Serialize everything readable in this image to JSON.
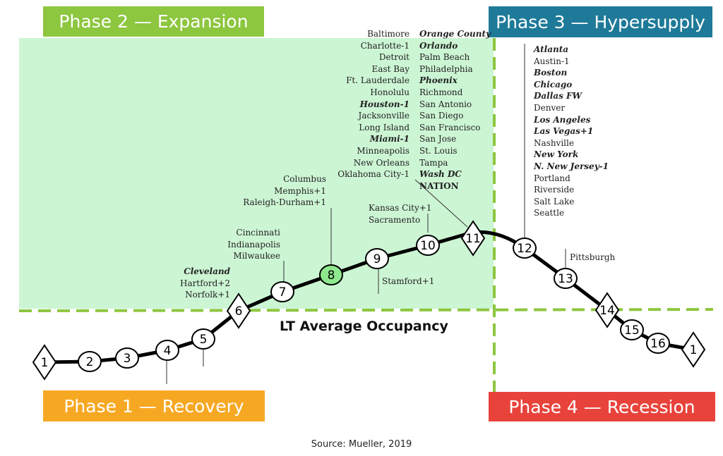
{
  "phases": {
    "expansion": {
      "label": "Phase 2 — Expansion",
      "color": "#8dc63f"
    },
    "hypersupply": {
      "label": "Phase 3 — Hypersupply",
      "color": "#1f7a99"
    },
    "recovery": {
      "label": "Phase 1 — Recovery",
      "color": "#f7a823"
    },
    "recession": {
      "label": "Phase 4 — Recession",
      "color": "#e8433b"
    }
  },
  "occupancy_label": "LT Average Occupancy",
  "source": "Source: Mueller, 2019",
  "cycle_points": [
    "1",
    "2",
    "3",
    "4",
    "5",
    "6",
    "7",
    "8",
    "9",
    "10",
    "11",
    "12",
    "13",
    "14",
    "15",
    "16",
    "1"
  ],
  "peak_col_left": [
    {
      "text": "Baltimore",
      "style": ""
    },
    {
      "text": "Charlotte-1",
      "style": ""
    },
    {
      "text": "Detroit",
      "style": ""
    },
    {
      "text": "East Bay",
      "style": ""
    },
    {
      "text": "Ft. Lauderdale",
      "style": ""
    },
    {
      "text": "Honolulu",
      "style": ""
    },
    {
      "text": "Houston-1",
      "style": "bold"
    },
    {
      "text": "Jacksonville",
      "style": ""
    },
    {
      "text": "Long Island",
      "style": ""
    },
    {
      "text": "Miami-1",
      "style": "bold"
    },
    {
      "text": "Minneapolis",
      "style": ""
    },
    {
      "text": "New Orleans",
      "style": ""
    },
    {
      "text": "Oklahoma City-1",
      "style": ""
    }
  ],
  "peak_col_right": [
    {
      "text": "Orange County",
      "style": "bold"
    },
    {
      "text": "Orlando",
      "style": "bold"
    },
    {
      "text": "Palm Beach",
      "style": ""
    },
    {
      "text": "Philadelphia",
      "style": ""
    },
    {
      "text": "Phoenix",
      "style": "bold"
    },
    {
      "text": "Richmond",
      "style": ""
    },
    {
      "text": "San Antonio",
      "style": ""
    },
    {
      "text": "San Diego",
      "style": ""
    },
    {
      "text": "San Francisco",
      "style": ""
    },
    {
      "text": "San Jose",
      "style": ""
    },
    {
      "text": "St. Louis",
      "style": ""
    },
    {
      "text": "Tampa",
      "style": ""
    },
    {
      "text": "Wash DC",
      "style": "bold"
    },
    {
      "text": "NATION",
      "style": "plain"
    }
  ],
  "hypersupply_list": [
    {
      "text": "Atlanta",
      "style": "bold"
    },
    {
      "text": "Austin-1",
      "style": ""
    },
    {
      "text": "Boston",
      "style": "bold"
    },
    {
      "text": "Chicago",
      "style": "bold"
    },
    {
      "text": "Dallas FW",
      "style": "bold"
    },
    {
      "text": "Denver",
      "style": ""
    },
    {
      "text": "Los Angeles",
      "style": "bold"
    },
    {
      "text": "Las Vegas+1",
      "style": "bold"
    },
    {
      "text": "Nashville",
      "style": ""
    },
    {
      "text": "New York",
      "style": "bold"
    },
    {
      "text": "N. New Jersey-1",
      "style": "bold"
    },
    {
      "text": "Portland",
      "style": ""
    },
    {
      "text": "Riverside",
      "style": ""
    },
    {
      "text": "Salt Lake",
      "style": ""
    },
    {
      "text": "Seattle",
      "style": ""
    }
  ],
  "point6_list": [
    {
      "text": "Cleveland",
      "style": "bold"
    },
    {
      "text": "Hartford+2",
      "style": ""
    },
    {
      "text": "Norfolk+1",
      "style": ""
    }
  ],
  "point7_list": [
    "Cincinnati",
    "Indianapolis",
    "Milwaukee"
  ],
  "point8_list": [
    "Columbus",
    "Memphis+1",
    "Raleigh-Durham+1"
  ],
  "point10_list": [
    "Kansas City+1",
    "Sacramento"
  ],
  "point9_list": [
    "Stamford+1"
  ],
  "point13_list": [
    "Pittsburgh"
  ]
}
